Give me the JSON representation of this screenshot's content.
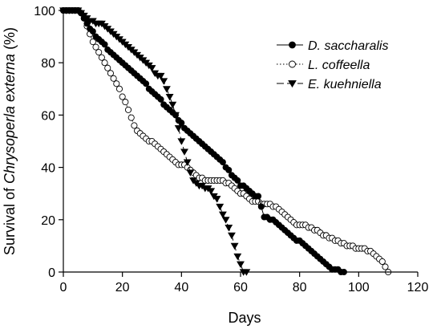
{
  "chart_data": {
    "type": "line",
    "xlabel": "Days",
    "ylabel_prefix": "Survival of ",
    "ylabel_species": "Chrysoperla externa",
    "ylabel_suffix": " (%)",
    "xlim": [
      0,
      120
    ],
    "ylim": [
      0,
      100
    ],
    "xticks": [
      0,
      20,
      40,
      60,
      80,
      100,
      120
    ],
    "yticks": [
      0,
      20,
      40,
      60,
      80,
      100
    ],
    "grid": false,
    "legend_position": "top-right",
    "series": [
      {
        "name": "D. saccharalis",
        "line_style": "solid",
        "marker": "filled-circle",
        "x": [
          0,
          1,
          2,
          3,
          4,
          5,
          6,
          7,
          8,
          9,
          10,
          11,
          12,
          13,
          14,
          15,
          16,
          17,
          18,
          19,
          20,
          21,
          22,
          23,
          24,
          25,
          26,
          27,
          28,
          29,
          30,
          31,
          32,
          33,
          34,
          35,
          36,
          37,
          38,
          39,
          40,
          41,
          42,
          43,
          44,
          45,
          46,
          47,
          48,
          49,
          50,
          51,
          52,
          53,
          54,
          55,
          56,
          57,
          58,
          59,
          60,
          61,
          62,
          63,
          64,
          65,
          66,
          67,
          68,
          69,
          70,
          71,
          72,
          73,
          74,
          75,
          76,
          77,
          78,
          79,
          80,
          81,
          82,
          83,
          84,
          85,
          86,
          87,
          88,
          89,
          90,
          91,
          92,
          93,
          94,
          95
        ],
        "y": [
          100,
          100,
          100,
          100,
          100,
          100,
          99,
          97,
          95,
          93,
          92,
          90,
          89,
          88,
          87,
          85,
          84,
          83,
          82,
          81,
          80,
          79,
          78,
          77,
          76,
          75,
          74,
          73,
          72,
          70,
          69,
          68,
          67,
          66,
          64,
          63,
          62,
          61,
          60,
          58,
          57,
          55,
          54,
          53,
          52,
          51,
          50,
          49,
          48,
          47,
          46,
          45,
          44,
          43,
          42,
          40,
          39,
          37,
          36,
          35,
          33,
          33,
          32,
          31,
          30,
          29,
          29,
          25,
          21,
          21,
          20,
          20,
          19,
          18,
          17,
          16,
          15,
          14,
          13,
          12,
          12,
          11,
          10,
          9,
          8,
          7,
          6,
          5,
          4,
          3,
          2,
          1,
          1,
          1,
          0,
          0
        ]
      },
      {
        "name": "L. coffeella",
        "line_style": "dotted",
        "marker": "open-circle",
        "x": [
          0,
          1,
          2,
          3,
          4,
          5,
          6,
          7,
          8,
          9,
          10,
          11,
          12,
          13,
          14,
          15,
          16,
          17,
          18,
          19,
          20,
          21,
          22,
          23,
          24,
          25,
          26,
          27,
          28,
          29,
          30,
          31,
          32,
          33,
          34,
          35,
          36,
          37,
          38,
          39,
          40,
          41,
          42,
          43,
          44,
          45,
          46,
          47,
          48,
          49,
          50,
          51,
          52,
          53,
          54,
          55,
          56,
          57,
          58,
          59,
          60,
          61,
          62,
          63,
          64,
          65,
          66,
          67,
          68,
          69,
          70,
          71,
          72,
          73,
          74,
          75,
          76,
          77,
          78,
          79,
          80,
          81,
          82,
          83,
          84,
          85,
          86,
          87,
          88,
          89,
          90,
          91,
          92,
          93,
          94,
          95,
          96,
          97,
          98,
          99,
          100,
          101,
          102,
          103,
          104,
          105,
          106,
          107,
          108,
          109,
          110
        ],
        "y": [
          100,
          100,
          100,
          100,
          100,
          100,
          99,
          97,
          94,
          91,
          88,
          86,
          84,
          82,
          80,
          78,
          76,
          74,
          72,
          70,
          67,
          65,
          62,
          59,
          56,
          54,
          53,
          52,
          51,
          50,
          50,
          49,
          48,
          47,
          46,
          45,
          44,
          43,
          42,
          41,
          41,
          41,
          40,
          39,
          38,
          37,
          36,
          36,
          35,
          35,
          35,
          35,
          35,
          35,
          35,
          34,
          34,
          33,
          32,
          31,
          30,
          30,
          29,
          28,
          27,
          27,
          27,
          26,
          26,
          26,
          26,
          25,
          25,
          24,
          23,
          22,
          21,
          20,
          19,
          18,
          18,
          18,
          18,
          17,
          17,
          16,
          16,
          15,
          14,
          14,
          13,
          13,
          12,
          12,
          11,
          11,
          10,
          10,
          10,
          9,
          9,
          9,
          9,
          8,
          8,
          7,
          6,
          5,
          4,
          2,
          0
        ]
      },
      {
        "name": "E. kuehniella",
        "line_style": "dashed",
        "marker": "filled-triangle-down",
        "x": [
          0,
          1,
          2,
          3,
          4,
          5,
          6,
          7,
          8,
          9,
          10,
          11,
          12,
          13,
          14,
          15,
          16,
          17,
          18,
          19,
          20,
          21,
          22,
          23,
          24,
          25,
          26,
          27,
          28,
          29,
          30,
          31,
          32,
          33,
          34,
          35,
          36,
          37,
          38,
          39,
          40,
          41,
          42,
          43,
          44,
          45,
          46,
          47,
          48,
          49,
          50,
          51,
          52,
          53,
          54,
          55,
          56,
          57,
          58,
          59,
          60,
          61,
          62
        ],
        "y": [
          100,
          100,
          100,
          100,
          100,
          100,
          99,
          98,
          97,
          96,
          96,
          95,
          95,
          95,
          94,
          93,
          92,
          91,
          90,
          89,
          88,
          87,
          86,
          85,
          84,
          83,
          82,
          81,
          80,
          79,
          78,
          76,
          75,
          75,
          73,
          70,
          67,
          64,
          60,
          55,
          50,
          46,
          42,
          38,
          35,
          34,
          33,
          33,
          32,
          32,
          31,
          29,
          28,
          25,
          22,
          20,
          17,
          14,
          10,
          6,
          3,
          0,
          0
        ]
      }
    ]
  }
}
